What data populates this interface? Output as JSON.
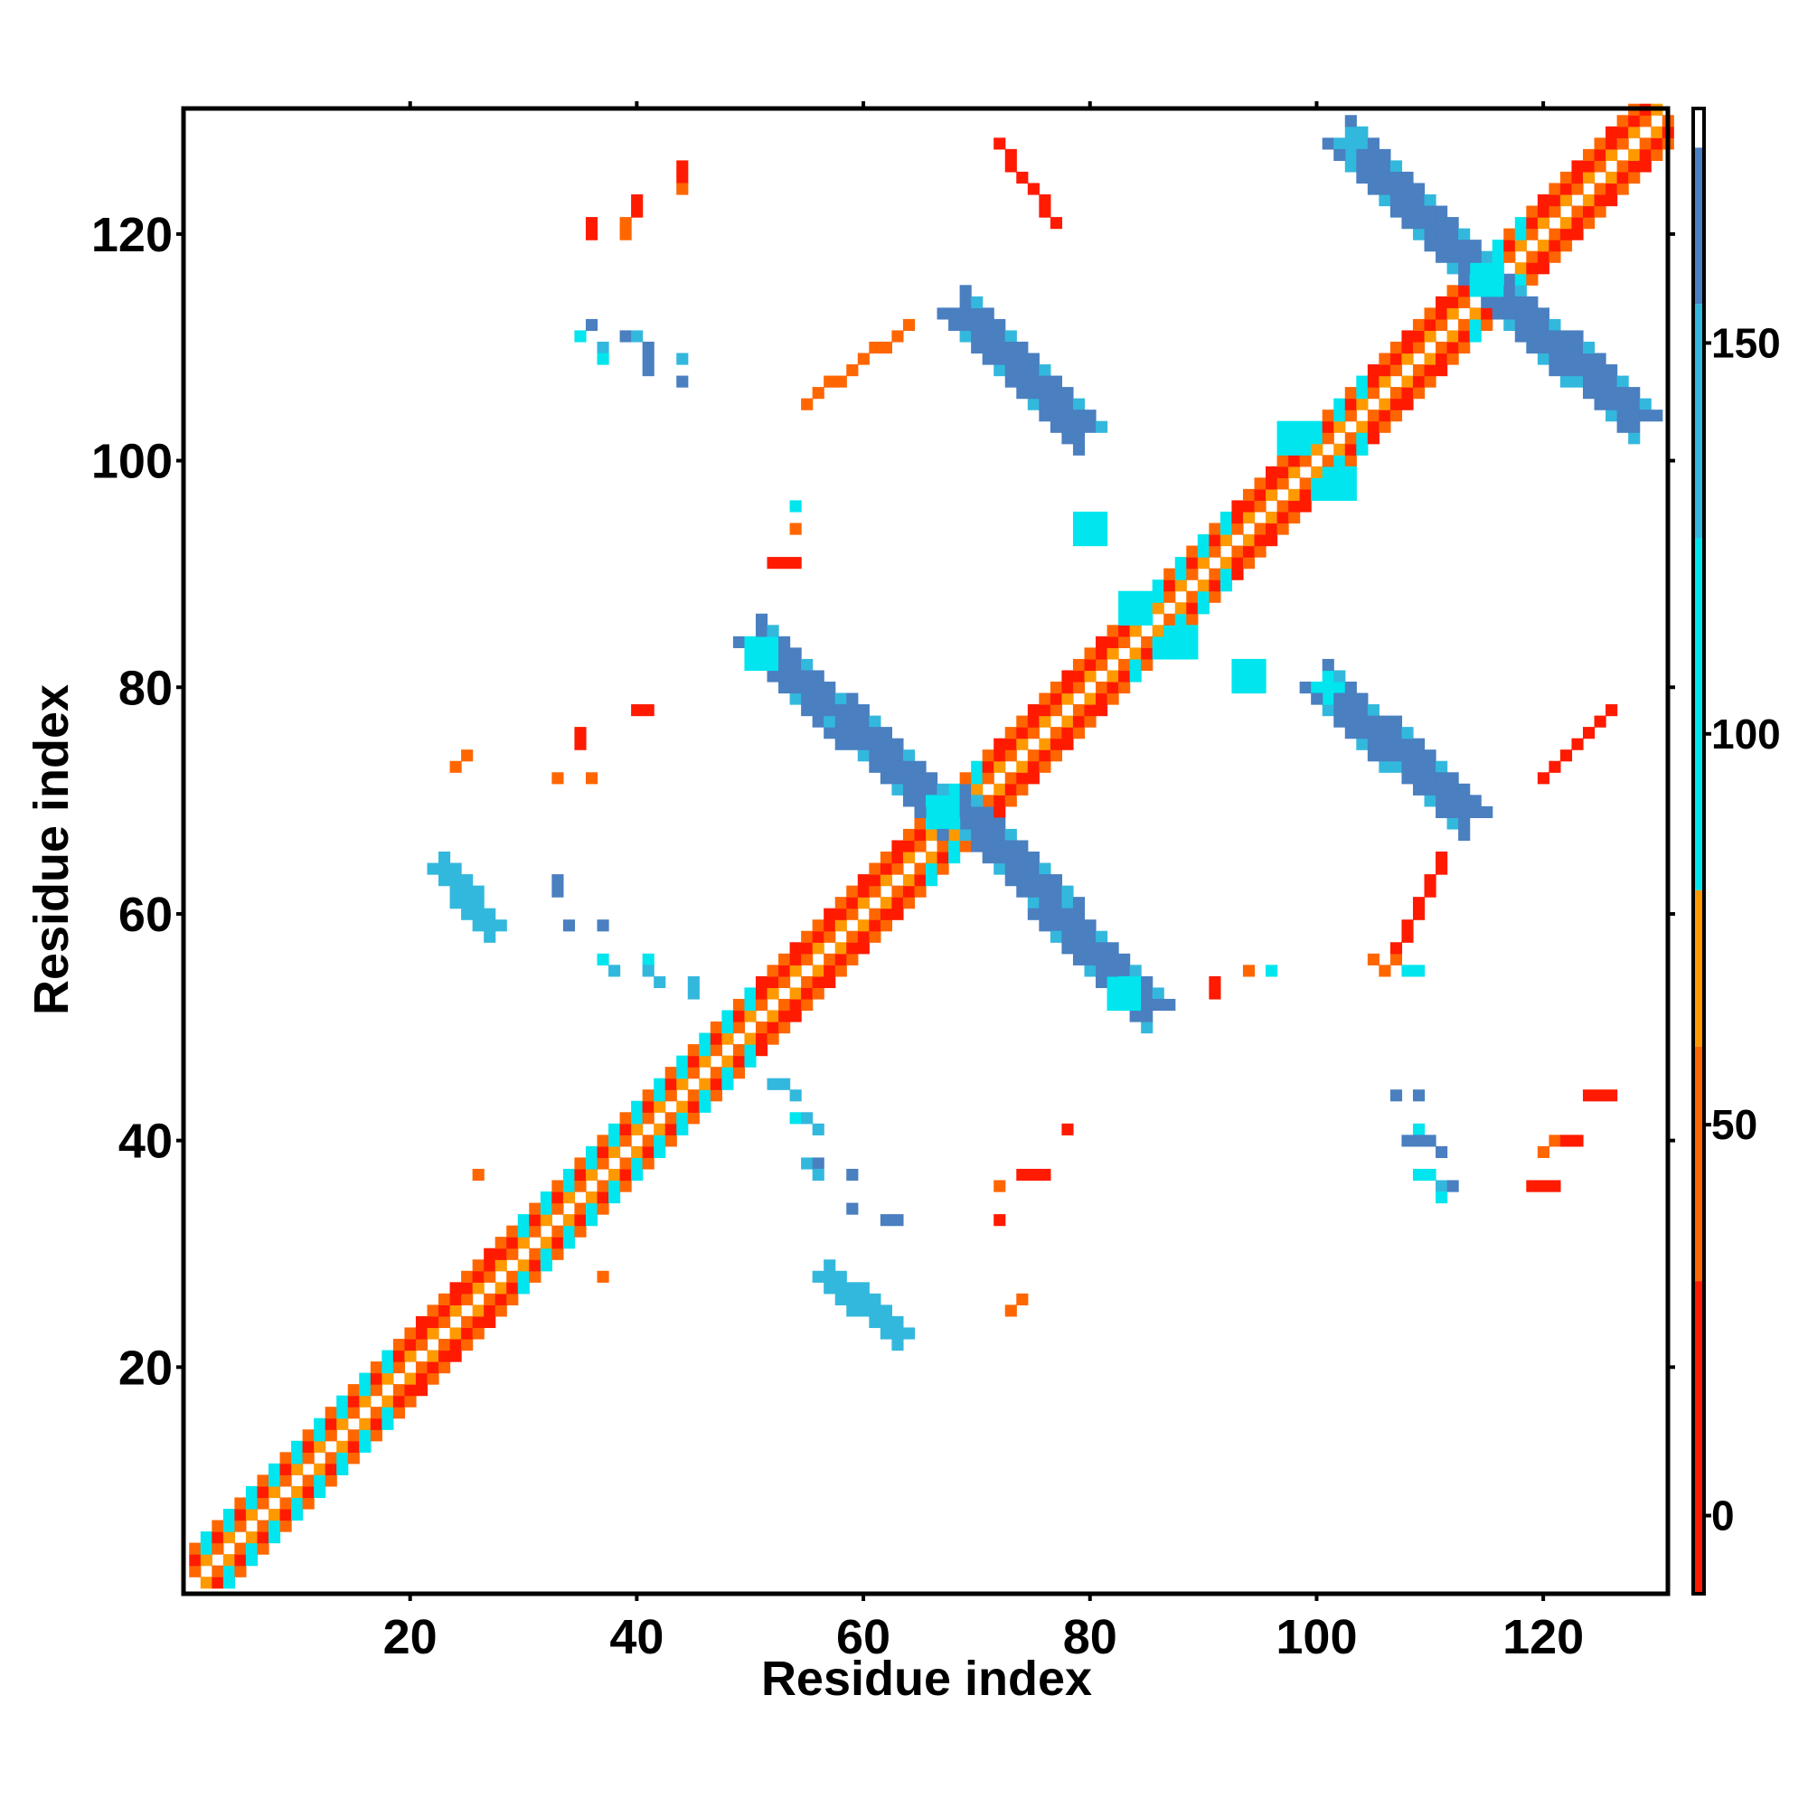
{
  "chart_data": {
    "type": "heatmap",
    "title": "",
    "xlabel": "Residue index",
    "ylabel": "Residue index",
    "xlim": [
      1,
      131
    ],
    "ylim": [
      1,
      131
    ],
    "x_ticks": [
      20,
      40,
      60,
      80,
      100,
      120
    ],
    "y_ticks": [
      20,
      40,
      60,
      80,
      100,
      120
    ],
    "colorbar": {
      "range": [
        -10,
        180
      ],
      "ticks": [
        0,
        50,
        100,
        150
      ],
      "bands": [
        {
          "from": -10,
          "to": 30,
          "color": "#ff1a00"
        },
        {
          "from": 30,
          "to": 60,
          "color": "#ff6600"
        },
        {
          "from": 60,
          "to": 80,
          "color": "#ff9900"
        },
        {
          "from": 80,
          "to": 125,
          "color": "#00e5ee"
        },
        {
          "from": 125,
          "to": 155,
          "color": "#33b8dd"
        },
        {
          "from": 155,
          "to": 175,
          "color": "#4a7fc0"
        },
        {
          "from": 175,
          "to": 180,
          "color": "#ffffff"
        }
      ]
    },
    "palette": {
      "red": "#ff1a00",
      "orange": "#ff6600",
      "amber": "#ff9900",
      "cyan": "#00e5ee",
      "sky": "#33b8dd",
      "steel": "#4a7fc0"
    },
    "diagonal_band": {
      "from": 1,
      "to": 131,
      "half_width": 3
    },
    "diagonal_cyan_ranges": [
      [
        2,
        19
      ],
      [
        29,
        50
      ],
      [
        66,
        70
      ],
      [
        83,
        92
      ],
      [
        100,
        104
      ],
      [
        114,
        118
      ]
    ],
    "regions": [
      {
        "type": "anti",
        "x1": 51,
        "y1": 84,
        "x2": 67,
        "y2": 69,
        "w": 2,
        "color": "steel"
      },
      {
        "type": "anti",
        "x1": 69,
        "y1": 69,
        "x2": 85,
        "y2": 52,
        "w": 2,
        "color": "steel"
      },
      {
        "type": "anti",
        "x1": 69,
        "y1": 113,
        "x2": 79,
        "y2": 103,
        "w": 2,
        "color": "steel"
      },
      {
        "type": "anti",
        "x1": 101,
        "y1": 80,
        "x2": 113,
        "y2": 69,
        "w": 2,
        "color": "steel"
      },
      {
        "type": "anti",
        "x1": 103,
        "y1": 128,
        "x2": 114,
        "y2": 117,
        "w": 2,
        "color": "steel"
      },
      {
        "type": "anti",
        "x1": 117,
        "y1": 114,
        "x2": 128,
        "y2": 104,
        "w": 2,
        "color": "steel"
      },
      {
        "type": "anti",
        "x1": 23,
        "y1": 64,
        "x2": 27,
        "y2": 59,
        "w": 1,
        "color": "sky"
      },
      {
        "type": "anti",
        "x1": 57,
        "y1": 28,
        "x2": 63,
        "y2": 23,
        "w": 1,
        "color": "sky"
      },
      {
        "type": "anti",
        "x1": 72,
        "y1": 128,
        "x2": 77,
        "y2": 121,
        "w": 0,
        "color": "red"
      },
      {
        "type": "anti",
        "x1": 55,
        "y1": 105,
        "x2": 64,
        "y2": 112,
        "w": 0,
        "color": "orange"
      },
      {
        "type": "anti",
        "x1": 106,
        "y1": 55,
        "x2": 111,
        "y2": 65,
        "w": 0,
        "color": "red"
      },
      {
        "type": "anti",
        "x1": 120,
        "y1": 72,
        "x2": 126,
        "y2": 78,
        "w": 0,
        "color": "red"
      },
      {
        "type": "blob",
        "cx": 51,
        "cy": 83,
        "r": 1.6,
        "color": "cyan"
      },
      {
        "type": "blob",
        "cx": 67,
        "cy": 69,
        "r": 1.6,
        "color": "cyan"
      },
      {
        "type": "blob",
        "cx": 83,
        "cy": 53,
        "r": 1.5,
        "color": "cyan"
      },
      {
        "type": "blob",
        "cx": 80,
        "cy": 94,
        "r": 1.5,
        "color": "cyan"
      },
      {
        "type": "blob",
        "cx": 94,
        "cy": 81,
        "r": 1.5,
        "color": "cyan"
      },
      {
        "type": "blob",
        "cx": 84,
        "cy": 87,
        "r": 1.8,
        "color": "cyan"
      },
      {
        "type": "blob",
        "cx": 88,
        "cy": 84,
        "r": 1.5,
        "color": "cyan"
      },
      {
        "type": "blob",
        "cx": 102,
        "cy": 98,
        "r": 1.5,
        "color": "cyan"
      },
      {
        "type": "blob",
        "cx": 98,
        "cy": 102,
        "r": 1.5,
        "color": "cyan"
      },
      {
        "type": "blob",
        "cx": 115,
        "cy": 116,
        "r": 1.5,
        "color": "cyan"
      },
      {
        "type": "blob",
        "cx": 101,
        "cy": 80,
        "r": 1.0,
        "color": "cyan"
      },
      {
        "type": "blob",
        "cx": 103,
        "cy": 128,
        "r": 1.0,
        "color": "sky"
      }
    ],
    "points": [
      [
        36,
        120,
        "red"
      ],
      [
        36,
        121,
        "red"
      ],
      [
        40,
        123,
        "red"
      ],
      [
        40,
        122,
        "red"
      ],
      [
        39,
        121,
        "orange"
      ],
      [
        39,
        120,
        "orange"
      ],
      [
        44,
        126,
        "red"
      ],
      [
        44,
        125,
        "red"
      ],
      [
        44,
        124,
        "orange"
      ],
      [
        35,
        111,
        "cyan"
      ],
      [
        36,
        112,
        "steel"
      ],
      [
        37,
        110,
        "sky"
      ],
      [
        37,
        109,
        "cyan"
      ],
      [
        39,
        111,
        "steel"
      ],
      [
        40,
        111,
        "sky"
      ],
      [
        41,
        110,
        "steel"
      ],
      [
        41,
        109,
        "steel"
      ],
      [
        41,
        108,
        "steel"
      ],
      [
        44,
        109,
        "sky"
      ],
      [
        44,
        107,
        "steel"
      ],
      [
        54,
        96,
        "cyan"
      ],
      [
        54,
        94,
        "orange"
      ],
      [
        52,
        91,
        "red"
      ],
      [
        53,
        91,
        "red"
      ],
      [
        54,
        91,
        "red"
      ],
      [
        35,
        76,
        "red"
      ],
      [
        35,
        75,
        "red"
      ],
      [
        40,
        78,
        "red"
      ],
      [
        25,
        74,
        "orange"
      ],
      [
        24,
        73,
        "orange"
      ],
      [
        33,
        72,
        "orange"
      ],
      [
        36,
        72,
        "orange"
      ],
      [
        41,
        78,
        "red"
      ],
      [
        33,
        63,
        "steel"
      ],
      [
        33,
        62,
        "steel"
      ],
      [
        34,
        59,
        "steel"
      ],
      [
        37,
        59,
        "steel"
      ],
      [
        37,
        56,
        "cyan"
      ],
      [
        38,
        55,
        "sky"
      ],
      [
        41,
        56,
        "cyan"
      ],
      [
        41,
        55,
        "sky"
      ],
      [
        42,
        54,
        "sky"
      ],
      [
        45,
        54,
        "sky"
      ],
      [
        45,
        53,
        "sky"
      ],
      [
        52,
        45,
        "sky"
      ],
      [
        53,
        45,
        "sky"
      ],
      [
        54,
        44,
        "sky"
      ],
      [
        54,
        42,
        "cyan"
      ],
      [
        55,
        42,
        "sky"
      ],
      [
        56,
        41,
        "sky"
      ],
      [
        55,
        38,
        "sky"
      ],
      [
        56,
        38,
        "steel"
      ],
      [
        56,
        37,
        "sky"
      ],
      [
        59,
        37,
        "steel"
      ],
      [
        59,
        34,
        "steel"
      ],
      [
        62,
        33,
        "steel"
      ],
      [
        63,
        33,
        "steel"
      ],
      [
        72,
        36,
        "orange"
      ],
      [
        72,
        33,
        "red"
      ],
      [
        74,
        37,
        "red"
      ],
      [
        75,
        37,
        "red"
      ],
      [
        76,
        37,
        "red"
      ],
      [
        78,
        41,
        "red"
      ],
      [
        73,
        25,
        "orange"
      ],
      [
        74,
        26,
        "orange"
      ],
      [
        91,
        53,
        "red"
      ],
      [
        91,
        54,
        "red"
      ],
      [
        94,
        55,
        "orange"
      ],
      [
        96,
        55,
        "cyan"
      ],
      [
        105,
        56,
        "orange"
      ],
      [
        106,
        55,
        "orange"
      ],
      [
        107,
        56,
        "orange"
      ],
      [
        108,
        55,
        "cyan"
      ],
      [
        109,
        55,
        "cyan"
      ],
      [
        107,
        44,
        "steel"
      ],
      [
        109,
        44,
        "steel"
      ],
      [
        109,
        41,
        "cyan"
      ],
      [
        108,
        40,
        "steel"
      ],
      [
        109,
        40,
        "steel"
      ],
      [
        110,
        40,
        "steel"
      ],
      [
        111,
        39,
        "steel"
      ],
      [
        109,
        37,
        "cyan"
      ],
      [
        110,
        37,
        "cyan"
      ],
      [
        111,
        36,
        "sky"
      ],
      [
        112,
        36,
        "steel"
      ],
      [
        111,
        35,
        "cyan"
      ],
      [
        119,
        36,
        "red"
      ],
      [
        120,
        36,
        "red"
      ],
      [
        121,
        36,
        "red"
      ],
      [
        120,
        39,
        "orange"
      ],
      [
        121,
        40,
        "orange"
      ],
      [
        122,
        40,
        "red"
      ],
      [
        123,
        40,
        "red"
      ],
      [
        124,
        44,
        "red"
      ],
      [
        125,
        44,
        "red"
      ],
      [
        126,
        44,
        "red"
      ],
      [
        26,
        37,
        "orange"
      ],
      [
        37,
        28,
        "orange"
      ]
    ]
  }
}
